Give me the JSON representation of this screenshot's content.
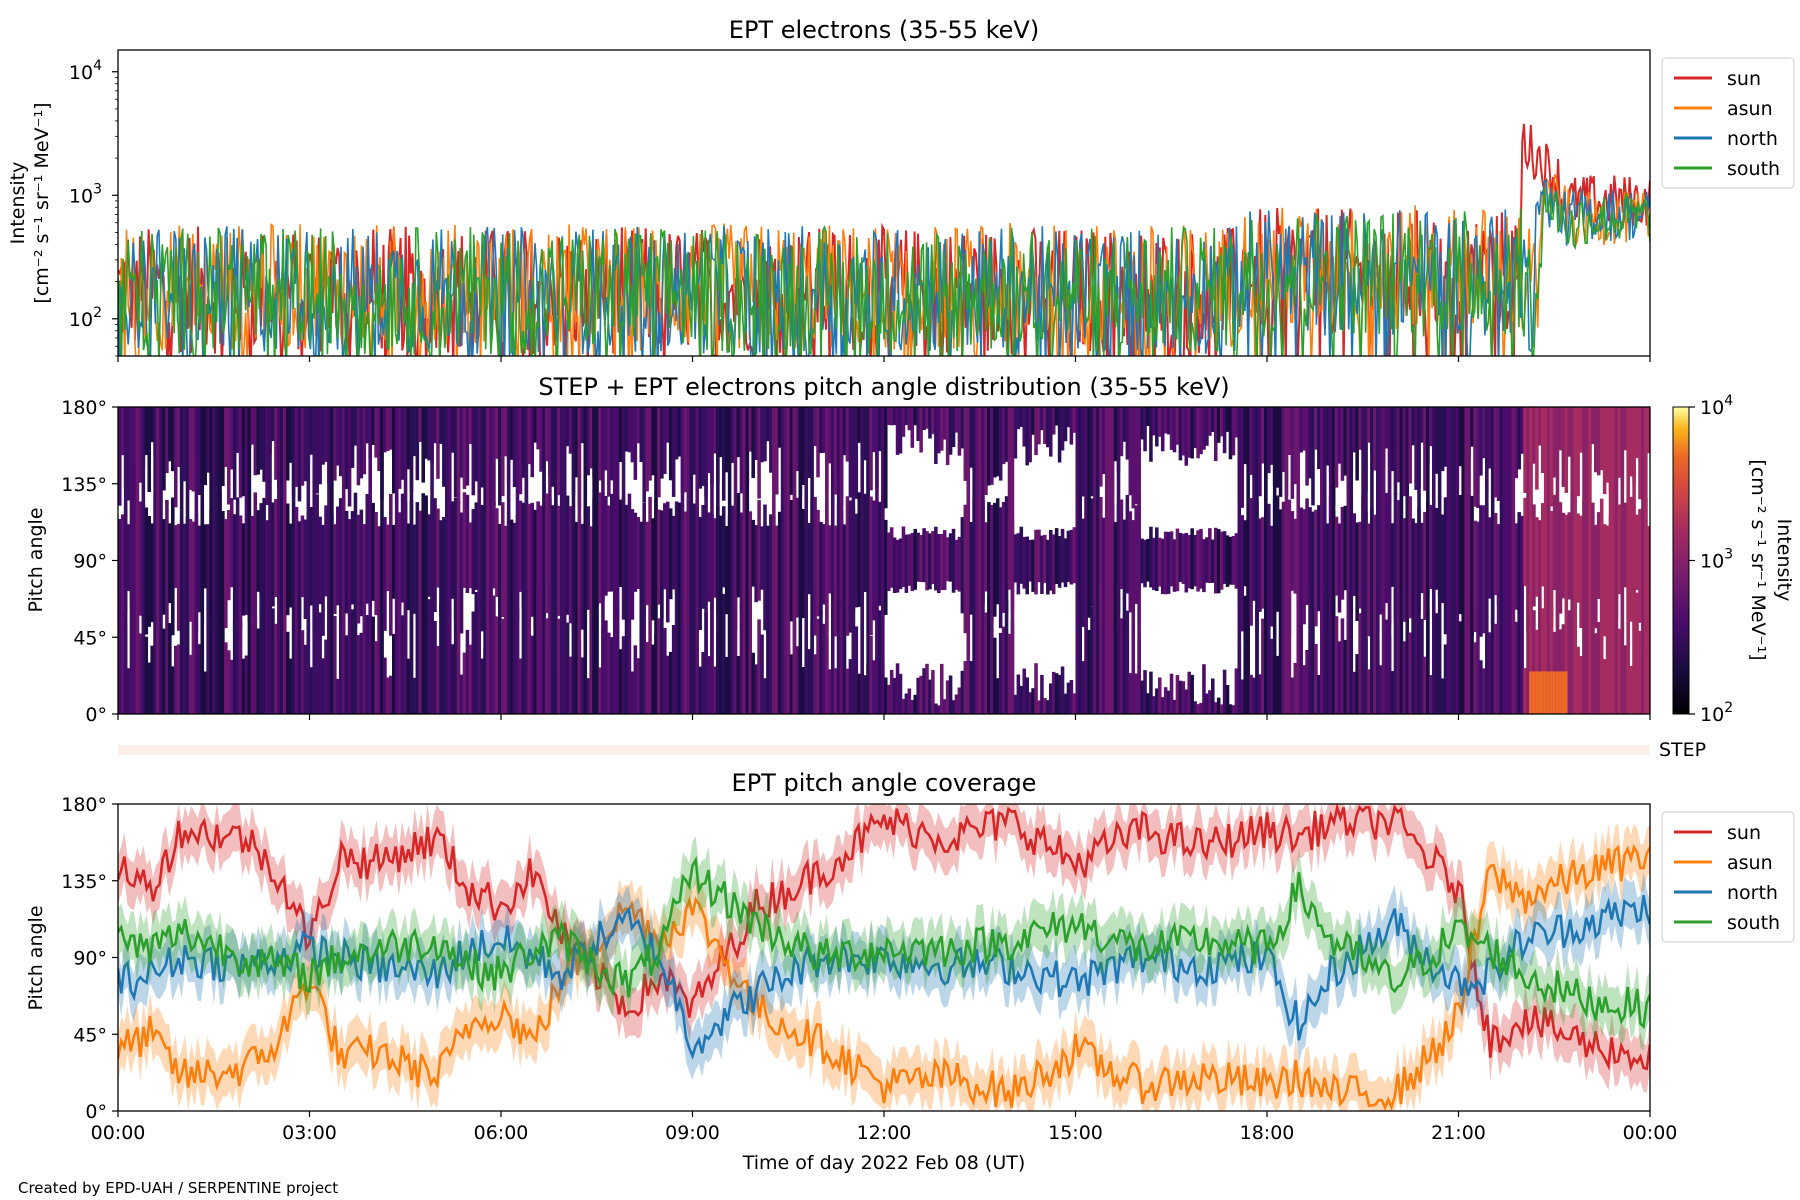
{
  "footer": {
    "credit": "Created by EPD-UAH / SERPENTINE project"
  },
  "colors": {
    "sun": "#d62728",
    "asun": "#ff7f0e",
    "north": "#1f77b4",
    "south": "#2ca02c",
    "step_bar": "#fdeee8"
  },
  "chart_data": [
    {
      "id": "intensity",
      "type": "line",
      "title": "EPT electrons (35-55 keV)",
      "ylabel_line1": "Intensity",
      "ylabel_line2": "[cm⁻² s⁻¹ sr⁻¹ MeV⁻¹]",
      "yscale": "log",
      "ylim": [
        50,
        15000
      ],
      "y_ticks": [
        {
          "base": "10",
          "exp": "2",
          "value": 100
        },
        {
          "base": "10",
          "exp": "3",
          "value": 1000
        },
        {
          "base": "10",
          "exp": "4",
          "value": 10000
        }
      ],
      "xlim_hours": [
        0,
        24
      ],
      "legend": {
        "position": "outside-right",
        "entries": [
          "sun",
          "asun",
          "north",
          "south"
        ]
      },
      "series": [
        {
          "name": "sun",
          "color": "#d62728",
          "baseline": 170,
          "event": {
            "start_hour": 22.0,
            "peak": 2800,
            "level": 900
          }
        },
        {
          "name": "asun",
          "color": "#ff7f0e",
          "baseline": 180,
          "event": {
            "start_hour": 22.3,
            "peak": 1200,
            "level": 650
          }
        },
        {
          "name": "north",
          "color": "#1f77b4",
          "baseline": 170,
          "event": {
            "start_hour": 22.2,
            "peak": 1200,
            "level": 700
          }
        },
        {
          "name": "south",
          "color": "#2ca02c",
          "baseline": 170,
          "event": {
            "start_hour": 22.3,
            "peak": 1000,
            "level": 650
          }
        }
      ]
    },
    {
      "id": "pad",
      "type": "heatmap",
      "title": "STEP + EPT electrons pitch angle distribution (35-55 keV)",
      "ylabel": "Pitch angle",
      "ylim": [
        0,
        180
      ],
      "y_ticks": [
        "0°",
        "45°",
        "90°",
        "135°",
        "180°"
      ],
      "colorbar": {
        "label_line1": "Intensity",
        "label_line2": "[cm⁻² s⁻¹ sr⁻¹ MeV⁻¹]",
        "scale": "log",
        "range": [
          100,
          10000
        ],
        "ticks": [
          {
            "base": "10",
            "exp": "2"
          },
          {
            "base": "10",
            "exp": "3"
          },
          {
            "base": "10",
            "exp": "4"
          }
        ],
        "colormap": "inferno"
      }
    },
    {
      "id": "step",
      "type": "bar",
      "label": "STEP"
    },
    {
      "id": "coverage",
      "type": "line",
      "title": "EPT pitch angle coverage",
      "ylabel": "Pitch angle",
      "ylim": [
        0,
        180
      ],
      "y_ticks": [
        "0°",
        "45°",
        "90°",
        "135°",
        "180°"
      ],
      "xlabel": "Time of day 2022 Feb 08 (UT)",
      "x_ticks": [
        "00:00",
        "03:00",
        "06:00",
        "09:00",
        "12:00",
        "15:00",
        "18:00",
        "21:00",
        "00:00"
      ],
      "legend": {
        "position": "outside-right",
        "entries": [
          "sun",
          "asun",
          "north",
          "south"
        ]
      },
      "series": [
        {
          "name": "sun",
          "color": "#d62728",
          "x_hours": [
            0,
            0.5,
            1,
            2,
            2.5,
            3,
            3.5,
            4,
            5,
            5.5,
            6,
            6.5,
            7,
            7.5,
            8,
            8.5,
            9,
            10,
            11,
            12,
            13,
            14,
            15,
            16,
            17,
            18,
            18.5,
            19,
            20,
            20.5,
            21,
            21.5,
            22,
            23,
            24
          ],
          "values": [
            145,
            130,
            165,
            160,
            140,
            100,
            150,
            145,
            160,
            130,
            120,
            140,
            100,
            80,
            60,
            80,
            60,
            120,
            140,
            170,
            160,
            170,
            145,
            165,
            155,
            165,
            160,
            170,
            170,
            150,
            130,
            40,
            55,
            40,
            30
          ]
        },
        {
          "name": "asun",
          "color": "#ff7f0e",
          "x_hours": [
            0,
            0.5,
            1,
            2,
            2.5,
            3,
            3.5,
            4,
            5,
            5.5,
            6,
            6.5,
            7,
            7.5,
            8,
            8.5,
            9,
            10,
            11,
            12,
            13,
            14,
            15,
            16,
            17,
            18,
            18.5,
            19,
            20,
            20.5,
            21,
            21.5,
            22,
            23,
            24
          ],
          "values": [
            35,
            45,
            20,
            25,
            40,
            80,
            30,
            35,
            20,
            50,
            60,
            40,
            80,
            100,
            120,
            100,
            120,
            60,
            40,
            15,
            20,
            10,
            35,
            15,
            20,
            15,
            20,
            10,
            10,
            30,
            55,
            140,
            125,
            140,
            150
          ]
        },
        {
          "name": "north",
          "color": "#1f77b4",
          "x_hours": [
            0,
            0.5,
            1,
            2,
            2.5,
            3,
            3.5,
            4,
            5,
            5.5,
            6,
            6.5,
            7,
            7.5,
            8,
            8.5,
            9,
            10,
            11,
            12,
            13,
            14,
            15,
            16,
            17,
            18,
            18.5,
            19,
            20,
            20.5,
            21,
            21.5,
            22,
            23,
            24
          ],
          "values": [
            75,
            80,
            90,
            85,
            90,
            95,
            90,
            85,
            80,
            95,
            100,
            90,
            80,
            100,
            110,
            90,
            40,
            70,
            90,
            90,
            85,
            85,
            75,
            90,
            85,
            90,
            50,
            80,
            110,
            90,
            75,
            80,
            100,
            110,
            120
          ]
        },
        {
          "name": "south",
          "color": "#2ca02c",
          "x_hours": [
            0,
            0.5,
            1,
            2,
            2.5,
            3,
            3.5,
            4,
            5,
            5.5,
            6,
            6.5,
            7,
            7.5,
            8,
            8.5,
            9,
            10,
            11,
            12,
            13,
            14,
            15,
            16,
            17,
            18,
            18.5,
            19,
            20,
            20.5,
            21,
            21.5,
            22,
            23,
            24
          ],
          "values": [
            100,
            95,
            105,
            90,
            85,
            80,
            90,
            95,
            100,
            85,
            80,
            95,
            100,
            85,
            75,
            95,
            140,
            110,
            90,
            95,
            95,
            100,
            110,
            95,
            100,
            95,
            130,
            100,
            75,
            90,
            105,
            95,
            80,
            65,
            60
          ]
        }
      ]
    }
  ]
}
